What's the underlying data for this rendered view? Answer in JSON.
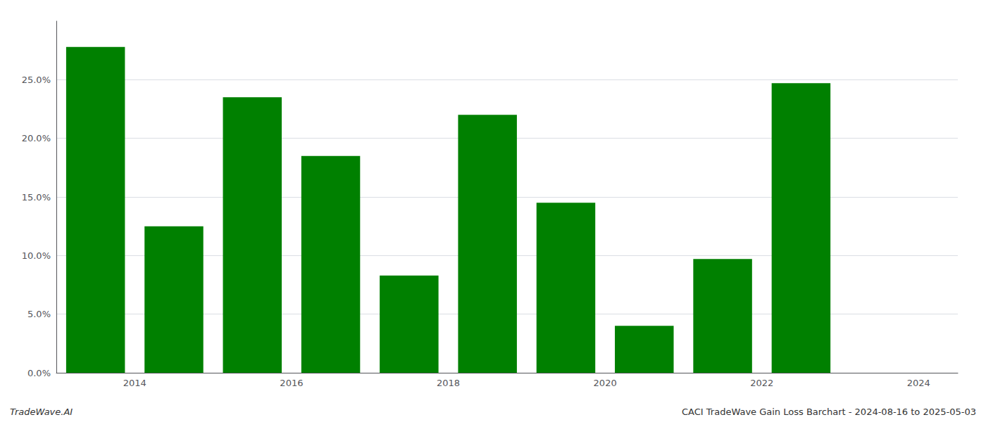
{
  "chart_data": {
    "type": "bar",
    "x": [
      2013.5,
      2014.5,
      2015.5,
      2016.5,
      2017.5,
      2018.5,
      2019.5,
      2020.5,
      2021.5,
      2022.5
    ],
    "values": [
      0.278,
      0.125,
      0.235,
      0.185,
      0.083,
      0.22,
      0.145,
      0.04,
      0.097,
      0.247
    ],
    "color": "#008000",
    "xlim": [
      2013.0,
      2024.5
    ],
    "xticks": [
      2014,
      2016,
      2018,
      2020,
      2022,
      2024
    ],
    "ylim": [
      0,
      0.3
    ],
    "yticks": [
      {
        "value": 0.0,
        "label": "0.0%"
      },
      {
        "value": 0.05,
        "label": "5.0%"
      },
      {
        "value": 0.1,
        "label": "10.0%"
      },
      {
        "value": 0.15,
        "label": "15.0%"
      },
      {
        "value": 0.2,
        "label": "20.0%"
      },
      {
        "value": 0.25,
        "label": "25.0%"
      }
    ],
    "grid": true,
    "annotations": [
      "TradeWave.AI",
      "CACI TradeWave Gain Loss Barchart - 2024-08-16 to 2025-05-03"
    ]
  }
}
